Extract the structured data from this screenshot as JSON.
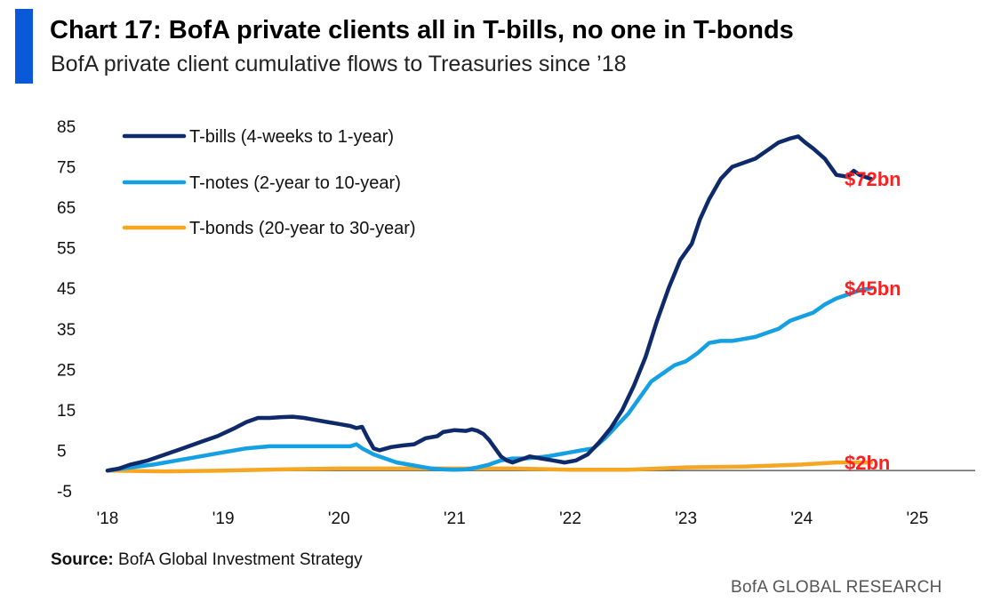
{
  "header": {
    "title": "Chart 17: BofA private clients all in T-bills, no one in T-bonds",
    "subtitle": "BofA private client cumulative flows to Treasuries since ’18",
    "accent_color": "#0a59d9"
  },
  "footer": {
    "source_label": "Source:",
    "source_text": " BofA Global Investment Strategy",
    "brand": "BofA GLOBAL RESEARCH"
  },
  "chart_data": {
    "type": "line",
    "title": "Chart 17: BofA private clients all in T-bills, no one in T-bonds",
    "subtitle": "BofA private client cumulative flows to Treasuries since ’18",
    "xlabel": "",
    "ylabel": "",
    "x_range": [
      2018.0,
      2025.5
    ],
    "ylim": [
      -5,
      85
    ],
    "y_ticks": [
      -5,
      5,
      15,
      25,
      35,
      45,
      55,
      65,
      75,
      85
    ],
    "x_ticks": [
      {
        "x": 2018,
        "label": "'18"
      },
      {
        "x": 2019,
        "label": "'19"
      },
      {
        "x": 2020,
        "label": "'20"
      },
      {
        "x": 2021,
        "label": "'21"
      },
      {
        "x": 2022,
        "label": "'22"
      },
      {
        "x": 2023,
        "label": "'23"
      },
      {
        "x": 2024,
        "label": "'24"
      },
      {
        "x": 2025,
        "label": "'25"
      }
    ],
    "grid": false,
    "legend_position": "top-left",
    "zero_line": true,
    "series": [
      {
        "name": "T-bills (4-weeks to 1-year)",
        "color": "#0f2a6b",
        "end_label": "$72bn",
        "points": [
          [
            2018.0,
            0.0
          ],
          [
            2018.1,
            0.5
          ],
          [
            2018.2,
            1.5
          ],
          [
            2018.35,
            2.5
          ],
          [
            2018.5,
            4.0
          ],
          [
            2018.65,
            5.5
          ],
          [
            2018.8,
            7.0
          ],
          [
            2018.95,
            8.5
          ],
          [
            2019.1,
            10.5
          ],
          [
            2019.2,
            12.0
          ],
          [
            2019.3,
            13.0
          ],
          [
            2019.4,
            13.0
          ],
          [
            2019.5,
            13.2
          ],
          [
            2019.6,
            13.3
          ],
          [
            2019.7,
            13.0
          ],
          [
            2019.8,
            12.5
          ],
          [
            2019.9,
            12.0
          ],
          [
            2020.0,
            11.5
          ],
          [
            2020.1,
            11.0
          ],
          [
            2020.15,
            10.5
          ],
          [
            2020.2,
            10.8
          ],
          [
            2020.25,
            8.0
          ],
          [
            2020.3,
            5.5
          ],
          [
            2020.35,
            5.0
          ],
          [
            2020.45,
            5.8
          ],
          [
            2020.55,
            6.2
          ],
          [
            2020.65,
            6.5
          ],
          [
            2020.75,
            8.0
          ],
          [
            2020.85,
            8.5
          ],
          [
            2020.9,
            9.5
          ],
          [
            2021.0,
            10.0
          ],
          [
            2021.1,
            9.8
          ],
          [
            2021.15,
            10.2
          ],
          [
            2021.2,
            9.8
          ],
          [
            2021.25,
            9.0
          ],
          [
            2021.3,
            7.5
          ],
          [
            2021.35,
            5.5
          ],
          [
            2021.4,
            3.5
          ],
          [
            2021.45,
            2.5
          ],
          [
            2021.5,
            2.0
          ],
          [
            2021.55,
            2.5
          ],
          [
            2021.6,
            3.0
          ],
          [
            2021.65,
            3.5
          ],
          [
            2021.75,
            3.0
          ],
          [
            2021.85,
            2.5
          ],
          [
            2021.95,
            2.0
          ],
          [
            2022.05,
            2.5
          ],
          [
            2022.15,
            4.0
          ],
          [
            2022.25,
            7.0
          ],
          [
            2022.35,
            10.5
          ],
          [
            2022.45,
            15.0
          ],
          [
            2022.55,
            21.0
          ],
          [
            2022.65,
            28.0
          ],
          [
            2022.75,
            37.0
          ],
          [
            2022.85,
            45.0
          ],
          [
            2022.95,
            52.0
          ],
          [
            2023.05,
            56.0
          ],
          [
            2023.12,
            62.0
          ],
          [
            2023.2,
            67.0
          ],
          [
            2023.3,
            72.0
          ],
          [
            2023.4,
            75.0
          ],
          [
            2023.5,
            76.0
          ],
          [
            2023.6,
            77.0
          ],
          [
            2023.7,
            79.0
          ],
          [
            2023.8,
            81.0
          ],
          [
            2023.9,
            82.0
          ],
          [
            2023.97,
            82.5
          ],
          [
            2024.03,
            81.0
          ],
          [
            2024.1,
            79.5
          ],
          [
            2024.2,
            77.0
          ],
          [
            2024.3,
            73.0
          ],
          [
            2024.4,
            72.5
          ],
          [
            2024.45,
            74.0
          ],
          [
            2024.5,
            73.0
          ],
          [
            2024.6,
            72.0
          ]
        ]
      },
      {
        "name": "T-notes (2-year to 10-year)",
        "color": "#16a0e4",
        "end_label": "$45bn",
        "points": [
          [
            2018.0,
            0.0
          ],
          [
            2018.2,
            0.8
          ],
          [
            2018.4,
            1.5
          ],
          [
            2018.6,
            2.5
          ],
          [
            2018.8,
            3.5
          ],
          [
            2019.0,
            4.5
          ],
          [
            2019.2,
            5.5
          ],
          [
            2019.4,
            6.0
          ],
          [
            2019.6,
            6.0
          ],
          [
            2019.8,
            6.0
          ],
          [
            2020.0,
            6.0
          ],
          [
            2020.1,
            6.0
          ],
          [
            2020.15,
            6.5
          ],
          [
            2020.2,
            5.5
          ],
          [
            2020.3,
            4.0
          ],
          [
            2020.4,
            3.0
          ],
          [
            2020.5,
            2.0
          ],
          [
            2020.6,
            1.5
          ],
          [
            2020.7,
            1.0
          ],
          [
            2020.8,
            0.5
          ],
          [
            2020.9,
            0.3
          ],
          [
            2021.0,
            0.2
          ],
          [
            2021.1,
            0.3
          ],
          [
            2021.2,
            0.8
          ],
          [
            2021.3,
            1.5
          ],
          [
            2021.4,
            2.5
          ],
          [
            2021.5,
            3.0
          ],
          [
            2021.6,
            3.0
          ],
          [
            2021.7,
            3.2
          ],
          [
            2021.8,
            3.5
          ],
          [
            2021.9,
            4.0
          ],
          [
            2022.0,
            4.5
          ],
          [
            2022.1,
            5.0
          ],
          [
            2022.2,
            5.5
          ],
          [
            2022.3,
            8.0
          ],
          [
            2022.4,
            11.0
          ],
          [
            2022.5,
            14.0
          ],
          [
            2022.6,
            18.0
          ],
          [
            2022.7,
            22.0
          ],
          [
            2022.8,
            24.0
          ],
          [
            2022.9,
            26.0
          ],
          [
            2023.0,
            27.0
          ],
          [
            2023.1,
            29.0
          ],
          [
            2023.2,
            31.5
          ],
          [
            2023.3,
            32.0
          ],
          [
            2023.4,
            32.0
          ],
          [
            2023.5,
            32.5
          ],
          [
            2023.6,
            33.0
          ],
          [
            2023.7,
            34.0
          ],
          [
            2023.8,
            35.0
          ],
          [
            2023.9,
            37.0
          ],
          [
            2024.0,
            38.0
          ],
          [
            2024.1,
            39.0
          ],
          [
            2024.2,
            41.0
          ],
          [
            2024.3,
            42.5
          ],
          [
            2024.4,
            43.5
          ],
          [
            2024.5,
            44.5
          ],
          [
            2024.6,
            45.0
          ]
        ]
      },
      {
        "name": "T-bonds (20-year to 30-year)",
        "color": "#f5a623",
        "end_label": "$2bn",
        "points": [
          [
            2018.0,
            0.0
          ],
          [
            2018.5,
            -0.2
          ],
          [
            2019.0,
            0.0
          ],
          [
            2019.5,
            0.3
          ],
          [
            2020.0,
            0.5
          ],
          [
            2020.5,
            0.5
          ],
          [
            2021.0,
            0.5
          ],
          [
            2021.5,
            0.5
          ],
          [
            2022.0,
            0.2
          ],
          [
            2022.5,
            0.2
          ],
          [
            2023.0,
            0.8
          ],
          [
            2023.5,
            1.0
          ],
          [
            2024.0,
            1.5
          ],
          [
            2024.3,
            2.0
          ],
          [
            2024.6,
            2.0
          ]
        ]
      }
    ]
  }
}
